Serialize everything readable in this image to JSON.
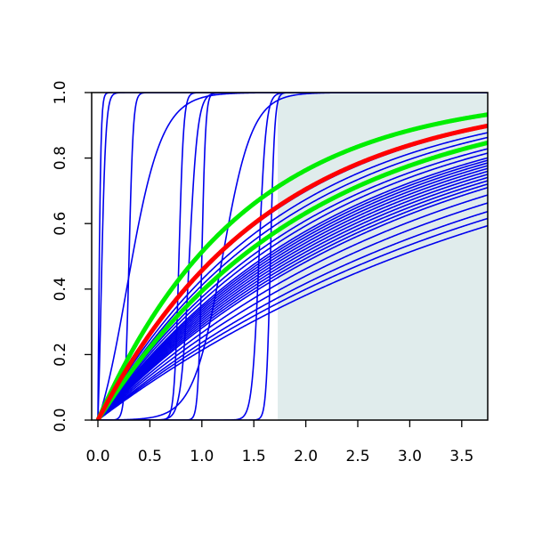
{
  "chart_data": {
    "type": "line",
    "title": "",
    "xlabel": "",
    "ylabel": "",
    "xlim": [
      -0.06,
      3.75
    ],
    "ylim": [
      0,
      1
    ],
    "x_ticks": [
      0.0,
      0.5,
      1.0,
      1.5,
      2.0,
      2.5,
      3.0,
      3.5
    ],
    "x_tick_labels": [
      "0.0",
      "0.5",
      "1.0",
      "1.5",
      "2.0",
      "2.5",
      "3.0",
      "3.5"
    ],
    "y_ticks": [
      0.0,
      0.2,
      0.4,
      0.6,
      0.8,
      1.0
    ],
    "y_tick_labels": [
      "0.0",
      "0.2",
      "0.4",
      "0.6",
      "0.8",
      "1.0"
    ],
    "shaded_region": {
      "x_from": 1.73,
      "x_to": 3.75,
      "y_from": 0,
      "y_to": 1,
      "color": "#e0ecec"
    },
    "colors": {
      "blue": "#0000ee",
      "red": "#ff0000",
      "green": "#00ee00",
      "axis": "#000000"
    },
    "grid": false,
    "legend": "none",
    "series_groups": [
      {
        "color": "blue",
        "kind": "steep-sigmoid",
        "curves": [
          {
            "midpoint": 0.0,
            "steepness": 80
          },
          {
            "midpoint": 0.03,
            "steepness": 45
          },
          {
            "midpoint": 0.3,
            "steepness": 50
          },
          {
            "midpoint": 0.28,
            "steepness": 6
          },
          {
            "midpoint": 0.78,
            "steepness": 45
          },
          {
            "midpoint": 0.88,
            "steepness": 25
          },
          {
            "midpoint": 1.0,
            "steepness": 55
          },
          {
            "midpoint": 1.2,
            "steepness": 7
          },
          {
            "midpoint": 1.55,
            "steepness": 30
          },
          {
            "midpoint": 1.66,
            "steepness": 50
          }
        ]
      },
      {
        "color": "blue",
        "kind": "exponential-cdf",
        "rates": [
          0.24,
          0.255,
          0.27,
          0.29,
          0.31,
          0.33,
          0.34,
          0.35,
          0.36,
          0.37,
          0.38,
          0.39,
          0.4,
          0.41,
          0.42,
          0.43,
          0.45,
          0.47,
          0.5,
          0.53,
          0.56,
          0.6
        ]
      },
      {
        "color": "green",
        "kind": "exponential-cdf",
        "rates": [
          0.5,
          0.72
        ]
      },
      {
        "color": "red",
        "kind": "exponential-cdf",
        "rates": [
          0.61
        ]
      }
    ]
  }
}
